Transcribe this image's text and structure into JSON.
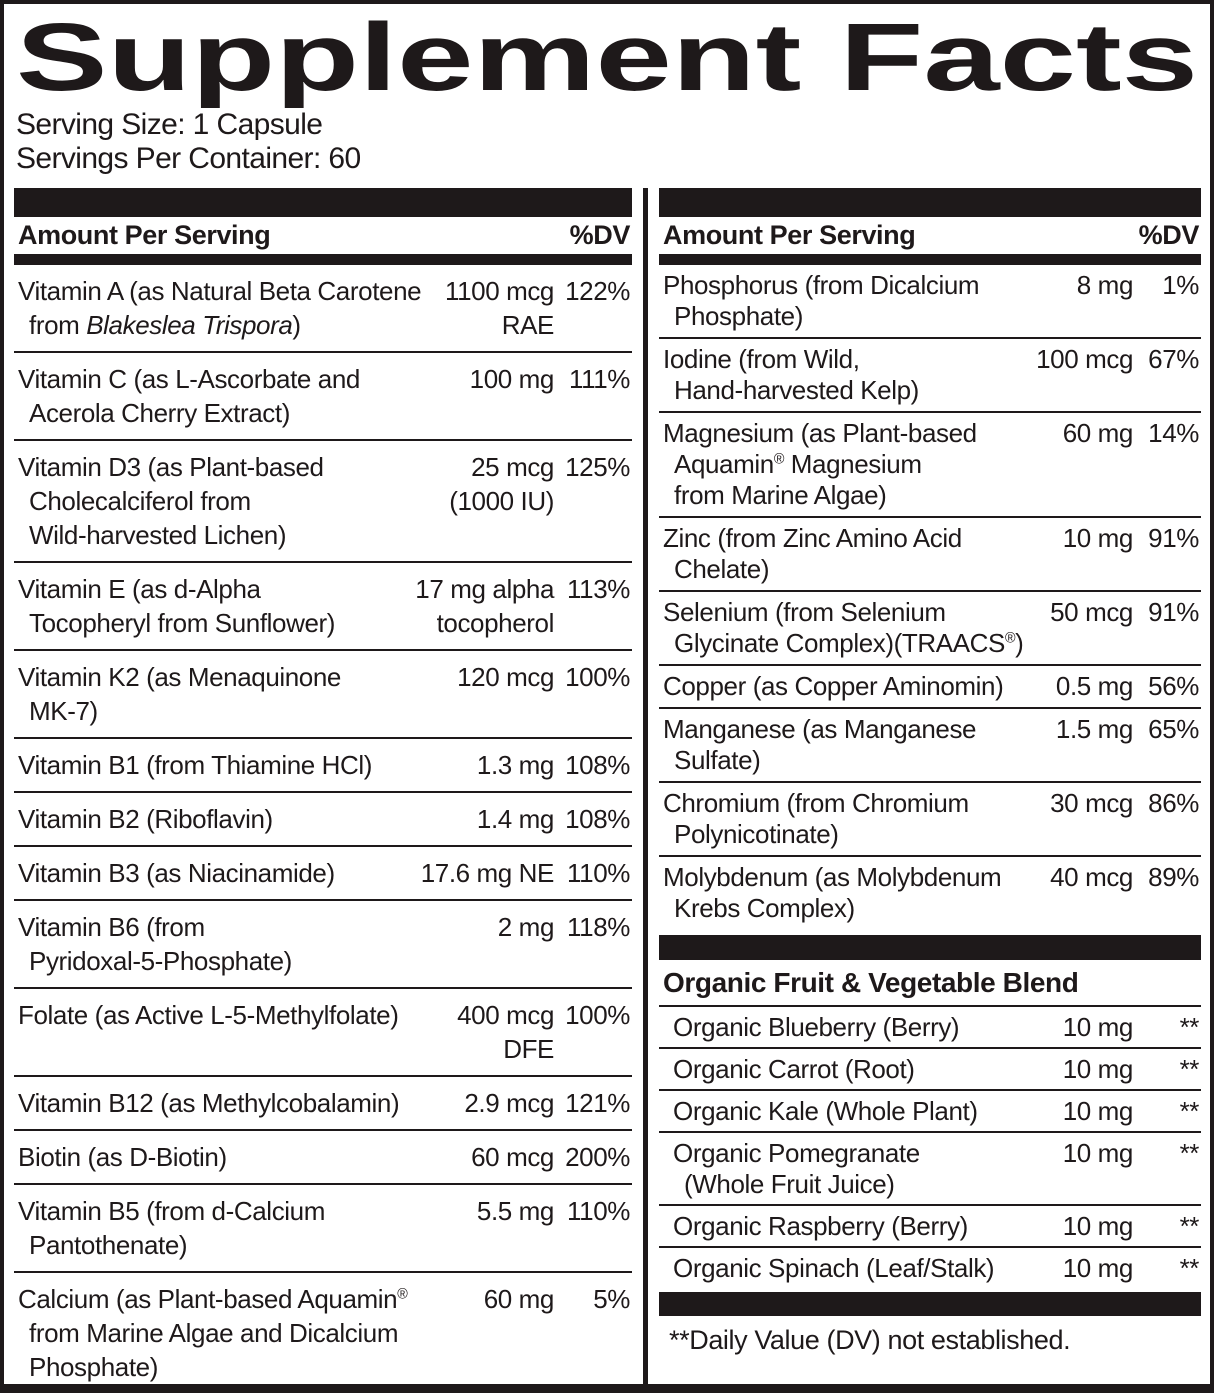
{
  "colors": {
    "ink": "#1e191a",
    "background": "#ffffff"
  },
  "header": {
    "title": "Supplement Facts",
    "serving_size": "Serving Size: 1 Capsule",
    "servings_per_container": "Servings Per Container: 60"
  },
  "table_header": {
    "amount_label": "Amount Per Serving",
    "dv_label": "%DV"
  },
  "columns": {
    "left": {
      "rows": [
        {
          "name_lines": [
            [
              {
                "t": "Vitamin A (as Natural Beta Carotene"
              }
            ],
            [
              {
                "t": "from "
              },
              {
                "t": "Blakeslea Trispora",
                "i": true
              },
              {
                "t": ")"
              }
            ]
          ],
          "amount_lines": [
            "1100 mcg",
            "RAE"
          ],
          "dv": "122%"
        },
        {
          "name_lines": [
            [
              {
                "t": "Vitamin C (as L-Ascorbate and"
              }
            ],
            [
              {
                "t": "Acerola Cherry Extract)"
              }
            ]
          ],
          "amount_lines": [
            "100 mg"
          ],
          "dv": "111%"
        },
        {
          "name_lines": [
            [
              {
                "t": "Vitamin D3 (as Plant-based"
              }
            ],
            [
              {
                "t": "Cholecalciferol from"
              }
            ],
            [
              {
                "t": "Wild-harvested Lichen)"
              }
            ]
          ],
          "amount_lines": [
            "25 mcg",
            "(1000 IU)"
          ],
          "dv": "125%"
        },
        {
          "name_lines": [
            [
              {
                "t": "Vitamin E (as d-Alpha"
              }
            ],
            [
              {
                "t": "Tocopheryl from Sunflower)"
              }
            ]
          ],
          "amount_lines": [
            "17 mg alpha",
            "tocopherol"
          ],
          "dv": "113%"
        },
        {
          "name_lines": [
            [
              {
                "t": "Vitamin K2 (as Menaquinone"
              }
            ],
            [
              {
                "t": "MK-7)"
              }
            ]
          ],
          "amount_lines": [
            "120 mcg"
          ],
          "dv": "100%"
        },
        {
          "name_lines": [
            [
              {
                "t": "Vitamin B1 (from Thiamine HCl)"
              }
            ]
          ],
          "amount_lines": [
            "1.3 mg"
          ],
          "dv": "108%"
        },
        {
          "name_lines": [
            [
              {
                "t": "Vitamin B2 (Riboflavin)"
              }
            ]
          ],
          "amount_lines": [
            "1.4 mg"
          ],
          "dv": "108%"
        },
        {
          "name_lines": [
            [
              {
                "t": "Vitamin B3 (as Niacinamide)"
              }
            ]
          ],
          "amount_lines": [
            "17.6 mg NE"
          ],
          "dv": "110%"
        },
        {
          "name_lines": [
            [
              {
                "t": "Vitamin B6 (from"
              }
            ],
            [
              {
                "t": "Pyridoxal-5-Phosphate)"
              }
            ]
          ],
          "amount_lines": [
            "2 mg"
          ],
          "dv": "118%"
        },
        {
          "name_lines": [
            [
              {
                "t": "Folate (as Active L-5-Methylfolate)"
              }
            ]
          ],
          "amount_lines": [
            "400 mcg",
            "DFE"
          ],
          "dv": "100%"
        },
        {
          "name_lines": [
            [
              {
                "t": "Vitamin B12 (as Methylcobalamin)"
              }
            ]
          ],
          "amount_lines": [
            "2.9 mcg"
          ],
          "dv": "121%"
        },
        {
          "name_lines": [
            [
              {
                "t": "Biotin (as D-Biotin)"
              }
            ]
          ],
          "amount_lines": [
            "60 mcg"
          ],
          "dv": "200%"
        },
        {
          "name_lines": [
            [
              {
                "t": "Vitamin B5 (from d-Calcium"
              }
            ],
            [
              {
                "t": "Pantothenate)"
              }
            ]
          ],
          "amount_lines": [
            "5.5 mg"
          ],
          "dv": "110%"
        },
        {
          "name_lines": [
            [
              {
                "t": "Calcium (as Plant-based Aquamin"
              },
              {
                "t": "®",
                "sup": true
              }
            ],
            [
              {
                "t": "from Marine Algae and Dicalcium"
              }
            ],
            [
              {
                "t": "Phosphate)"
              }
            ]
          ],
          "amount_lines": [
            "60 mg"
          ],
          "dv": "5%"
        }
      ]
    },
    "right": {
      "rows": [
        {
          "name_lines": [
            [
              {
                "t": "Phosphorus (from Dicalcium"
              }
            ],
            [
              {
                "t": "Phosphate)"
              }
            ]
          ],
          "amount_lines": [
            "8 mg"
          ],
          "dv": "1%"
        },
        {
          "name_lines": [
            [
              {
                "t": "Iodine (from Wild,"
              }
            ],
            [
              {
                "t": "Hand-harvested Kelp)"
              }
            ]
          ],
          "amount_lines": [
            "100 mcg"
          ],
          "dv": "67%"
        },
        {
          "name_lines": [
            [
              {
                "t": "Magnesium (as Plant-based"
              }
            ],
            [
              {
                "t": "Aquamin"
              },
              {
                "t": "®",
                "sup": true
              },
              {
                "t": " Magnesium"
              }
            ],
            [
              {
                "t": "from Marine Algae)"
              }
            ]
          ],
          "amount_lines": [
            "60 mg"
          ],
          "dv": "14%"
        },
        {
          "name_lines": [
            [
              {
                "t": "Zinc (from Zinc Amino Acid"
              }
            ],
            [
              {
                "t": "Chelate)"
              }
            ]
          ],
          "amount_lines": [
            "10 mg"
          ],
          "dv": "91%"
        },
        {
          "name_lines": [
            [
              {
                "t": "Selenium (from Selenium"
              }
            ],
            [
              {
                "t": "Glycinate Complex)(TRAACS"
              },
              {
                "t": "®",
                "sup": true
              },
              {
                "t": ")"
              }
            ]
          ],
          "amount_lines": [
            "50 mcg"
          ],
          "dv": "91%"
        },
        {
          "name_lines": [
            [
              {
                "t": "Copper (as Copper Aminomin)"
              }
            ]
          ],
          "amount_lines": [
            "0.5 mg"
          ],
          "dv": "56%"
        },
        {
          "name_lines": [
            [
              {
                "t": "Manganese (as Manganese"
              }
            ],
            [
              {
                "t": "Sulfate)"
              }
            ]
          ],
          "amount_lines": [
            "1.5 mg"
          ],
          "dv": "65%"
        },
        {
          "name_lines": [
            [
              {
                "t": "Chromium (from Chromium"
              }
            ],
            [
              {
                "t": "Polynicotinate)"
              }
            ]
          ],
          "amount_lines": [
            "30 mcg"
          ],
          "dv": "86%"
        },
        {
          "name_lines": [
            [
              {
                "t": "Molybdenum (as Molybdenum"
              }
            ],
            [
              {
                "t": "Krebs Complex)"
              }
            ]
          ],
          "amount_lines": [
            "40 mcg"
          ],
          "dv": "89%"
        }
      ],
      "blend": {
        "title": "Organic Fruit & Vegetable Blend",
        "rows": [
          {
            "name_lines": [
              [
                {
                  "t": "Organic Blueberry (Berry)"
                }
              ]
            ],
            "amount_lines": [
              "10 mg"
            ],
            "dv": "**"
          },
          {
            "name_lines": [
              [
                {
                  "t": "Organic Carrot (Root)"
                }
              ]
            ],
            "amount_lines": [
              "10 mg"
            ],
            "dv": "**"
          },
          {
            "name_lines": [
              [
                {
                  "t": "Organic Kale (Whole Plant)"
                }
              ]
            ],
            "amount_lines": [
              "10 mg"
            ],
            "dv": "**"
          },
          {
            "name_lines": [
              [
                {
                  "t": "Organic Pomegranate"
                }
              ],
              [
                {
                  "t": "(Whole Fruit Juice)"
                }
              ]
            ],
            "amount_lines": [
              "10 mg"
            ],
            "dv": "**"
          },
          {
            "name_lines": [
              [
                {
                  "t": "Organic Raspberry (Berry)"
                }
              ]
            ],
            "amount_lines": [
              "10 mg"
            ],
            "dv": "**"
          },
          {
            "name_lines": [
              [
                {
                  "t": "Organic Spinach (Leaf/Stalk)"
                }
              ]
            ],
            "amount_lines": [
              "10 mg"
            ],
            "dv": "**"
          }
        ]
      },
      "footnote": "**Daily Value (DV) not established."
    }
  }
}
